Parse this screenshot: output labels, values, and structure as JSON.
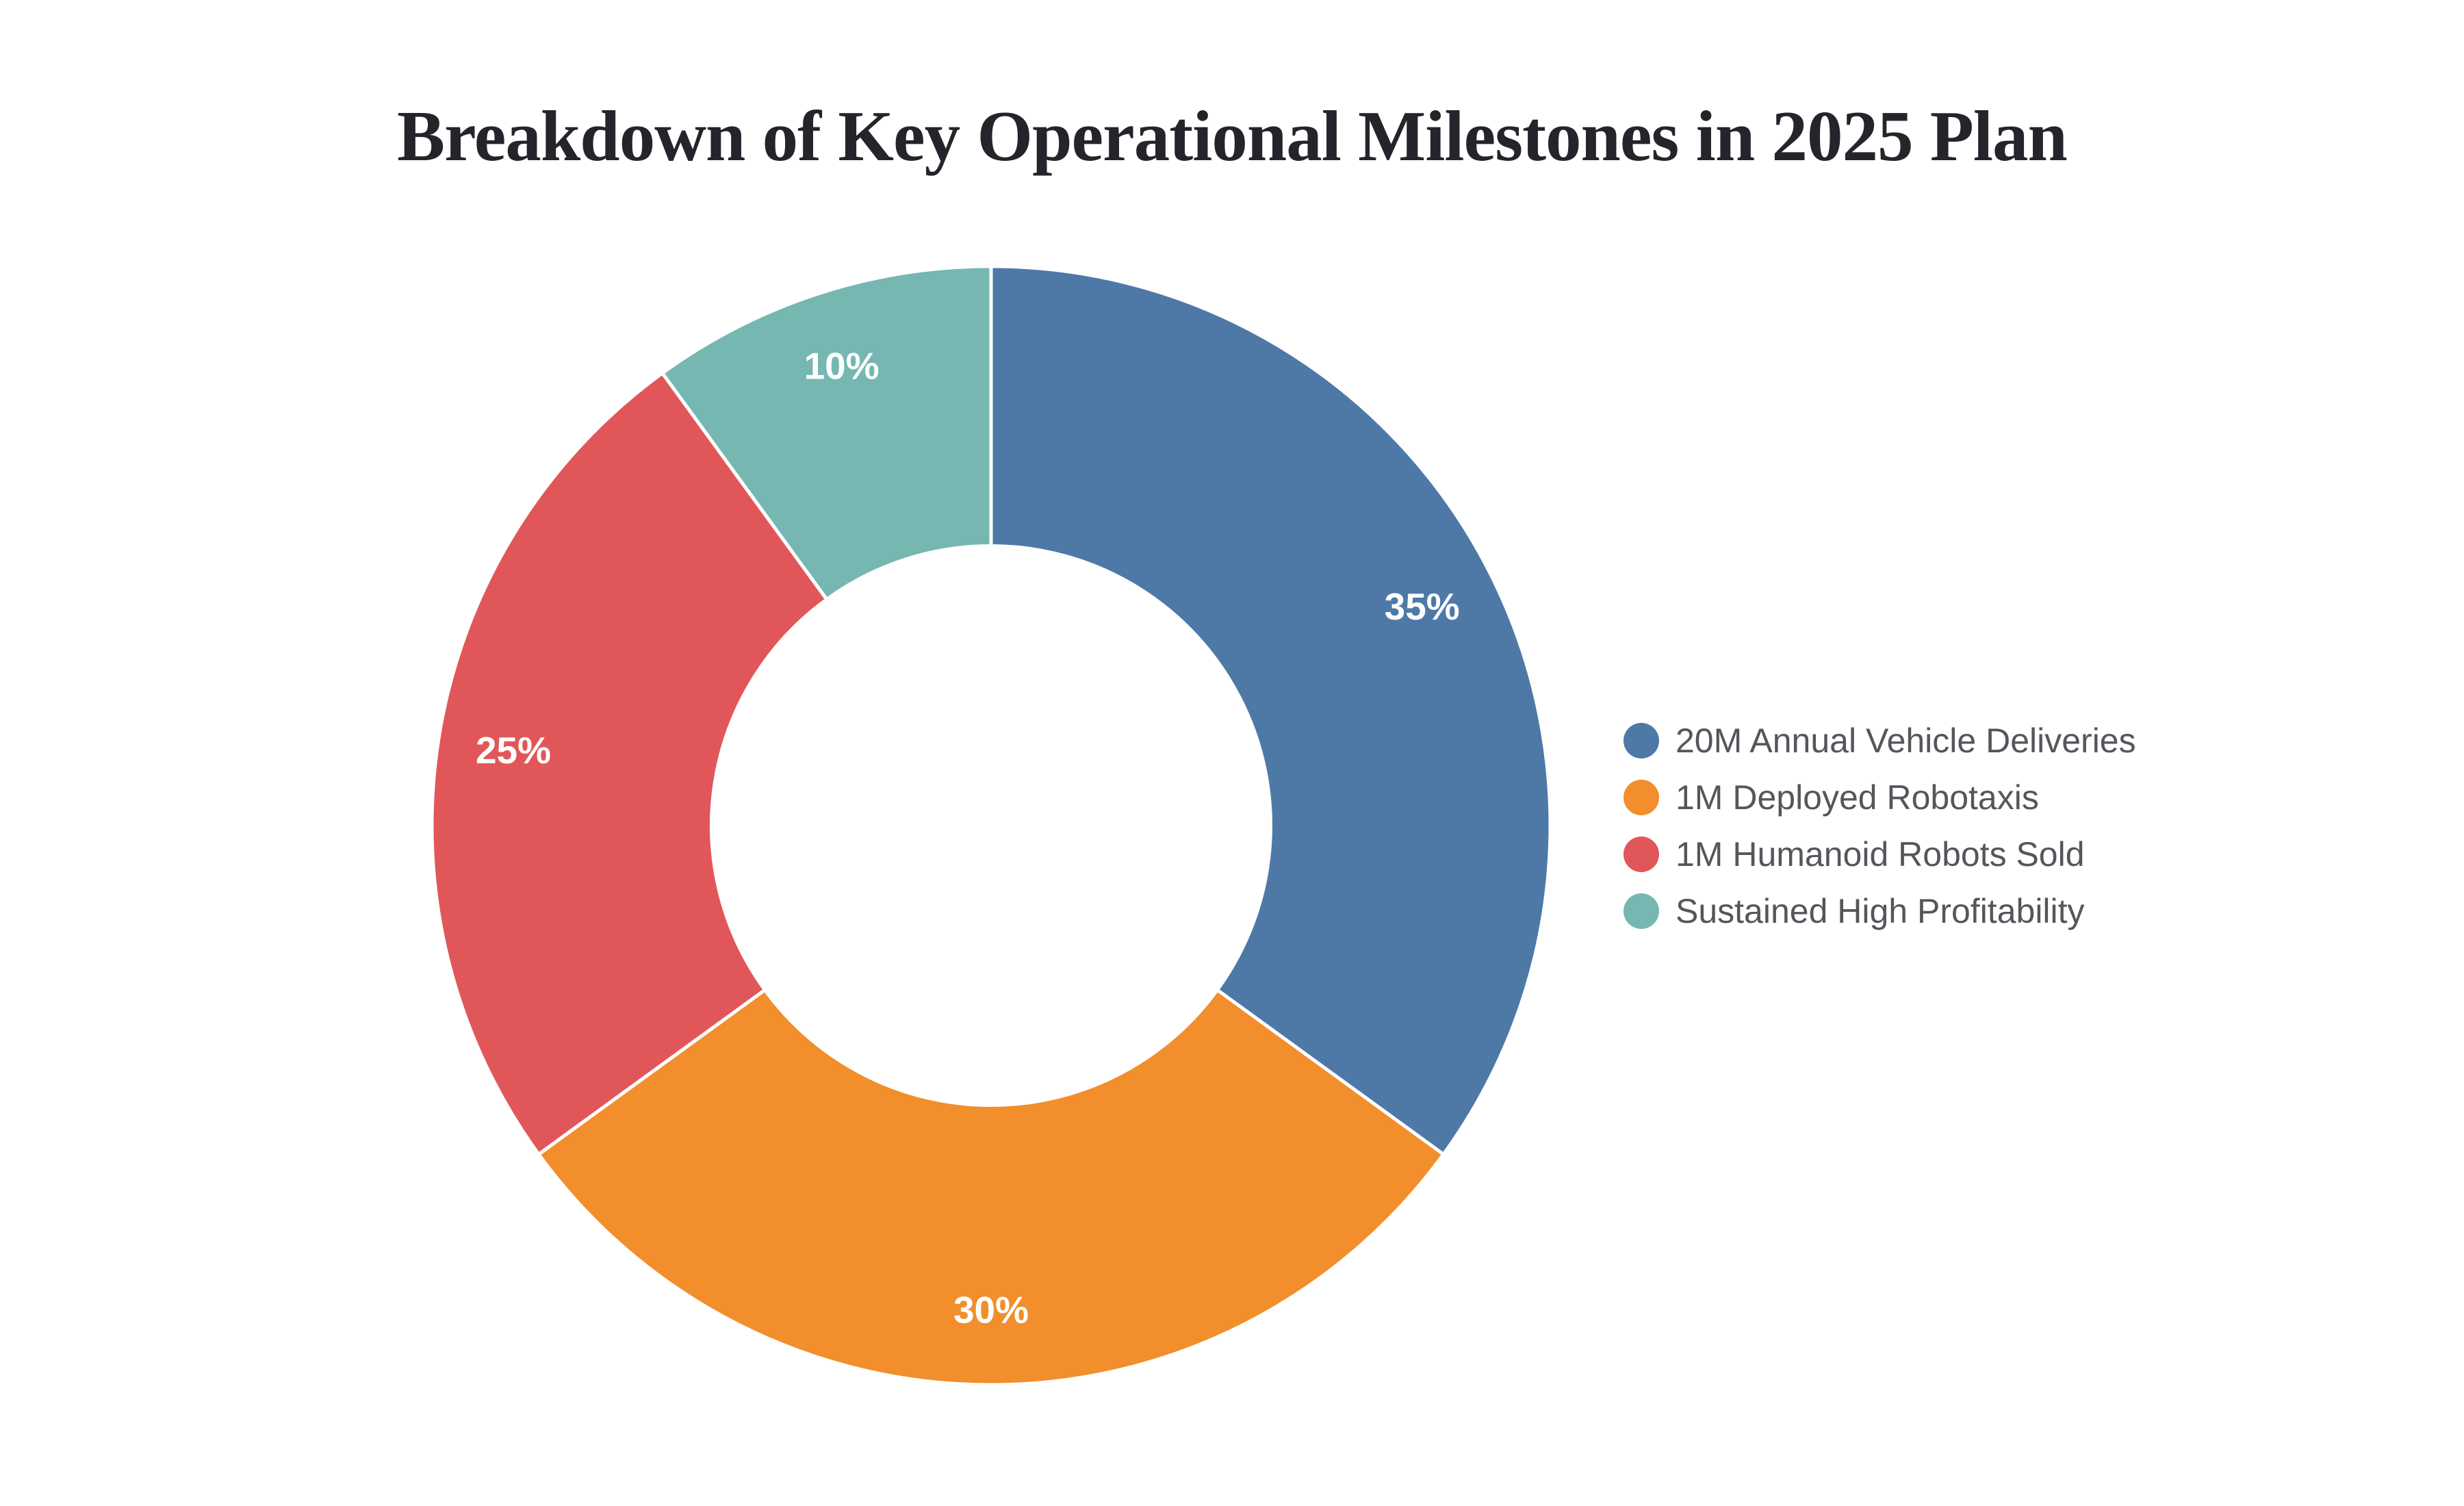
{
  "title": {
    "text": "Breakdown of Key Operational Milestones in 2025 Plan",
    "color": "#23252B"
  },
  "chart_data": {
    "type": "pie",
    "subtype": "donut",
    "title": "Breakdown of Key Operational Milestones in 2025 Plan",
    "labels": [
      "20M Annual Vehicle Deliveries",
      "1M Deployed Robotaxis",
      "1M Humanoid Robots Sold",
      "Sustained High Profitability"
    ],
    "values": [
      35,
      30,
      25,
      10
    ],
    "unit": "%",
    "slice_labels": [
      "35%",
      "30%",
      "25%",
      "10%"
    ],
    "colors": [
      "#4E79A7",
      "#F28E2B",
      "#E15759",
      "#76B7B2"
    ],
    "start_angle_deg": 0,
    "direction": "clockwise",
    "hole_ratio": 0.5,
    "legend_position": "right",
    "slice_label_color": "#FFFFFF",
    "separator_color": "#FFFFFF",
    "legend_text_color": "#54565B",
    "background_color": "#FFFFFF"
  }
}
